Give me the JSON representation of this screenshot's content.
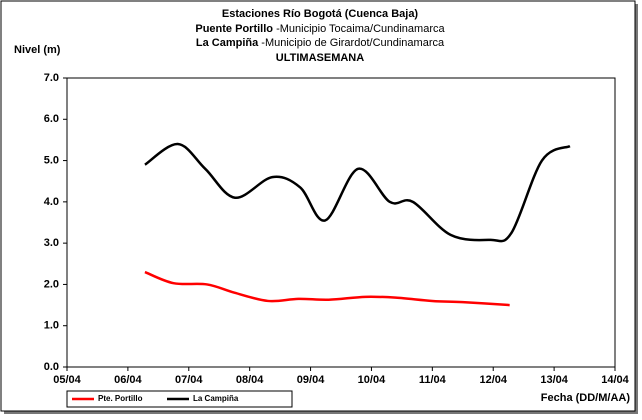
{
  "chart_data": {
    "type": "line",
    "title": "Estaciones Río Bogotá (Cuenca Baja)",
    "subtitle_lines": [
      {
        "station": "Puente Portillo",
        "place": "-Municipio Tocaima/Cundinamarca"
      },
      {
        "station": "La Campiña",
        "place": "-Municipio de Girardot/Cundinamarca"
      }
    ],
    "period": "ULTIMASEMANA",
    "y_label": "Nivel (m)",
    "x_label": "Fecha (DD/M/AA)",
    "xlim": [
      5,
      14
    ],
    "xticks": [
      {
        "value": 5,
        "label": "05/04"
      },
      {
        "value": 6,
        "label": "06/04"
      },
      {
        "value": 7,
        "label": "07/04"
      },
      {
        "value": 8,
        "label": "08/04"
      },
      {
        "value": 9,
        "label": "09/04"
      },
      {
        "value": 10,
        "label": "10/04"
      },
      {
        "value": 11,
        "label": "11/04"
      },
      {
        "value": 12,
        "label": "12/04"
      },
      {
        "value": 13,
        "label": "13/04"
      },
      {
        "value": 14,
        "label": "14/04"
      }
    ],
    "ylim": [
      0,
      7
    ],
    "yticks": [
      {
        "value": 0,
        "label": "0.0"
      },
      {
        "value": 1,
        "label": "1.0"
      },
      {
        "value": 2,
        "label": "2.0"
      },
      {
        "value": 3,
        "label": "3.0"
      },
      {
        "value": 4,
        "label": "4.0"
      },
      {
        "value": 5,
        "label": "5.0"
      },
      {
        "value": 6,
        "label": "6.0"
      },
      {
        "value": 7,
        "label": "7.0"
      }
    ],
    "grid": false,
    "legend": "bottom-left",
    "series": [
      {
        "name": "Pte. Portillo",
        "color": "#ff0000",
        "x": [
          6.28,
          6.75,
          7.3,
          7.75,
          8.3,
          8.8,
          9.3,
          9.9,
          10.4,
          11.0,
          11.5,
          12.27
        ],
        "values": [
          2.3,
          2.03,
          2.0,
          1.8,
          1.6,
          1.65,
          1.63,
          1.7,
          1.68,
          1.6,
          1.57,
          1.5
        ]
      },
      {
        "name": "La Campiña",
        "color": "#000000",
        "x": [
          6.28,
          6.82,
          7.27,
          7.76,
          8.37,
          8.83,
          9.24,
          9.78,
          10.3,
          10.68,
          11.3,
          11.95,
          12.3,
          12.8,
          13.26
        ],
        "values": [
          4.9,
          5.4,
          4.8,
          4.1,
          4.6,
          4.35,
          3.55,
          4.8,
          4.0,
          4.0,
          3.2,
          3.08,
          3.25,
          5.0,
          5.35
        ]
      }
    ]
  }
}
